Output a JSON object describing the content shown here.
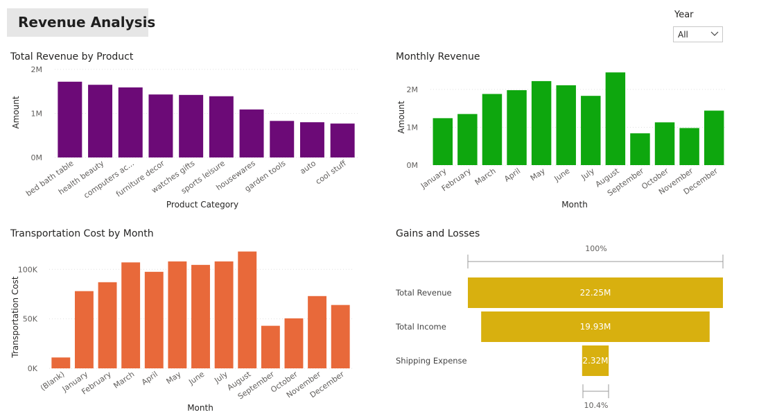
{
  "report": {
    "title": "Revenue Analysis"
  },
  "slicer": {
    "label": "Year",
    "value": "All"
  },
  "chart_data": [
    {
      "type": "bar",
      "id": "total_revenue_by_product",
      "title": "Total Revenue by Product",
      "xlabel": "Product Category",
      "ylabel": "Amount",
      "categories": [
        "bed bath table",
        "health beauty",
        "computers ac...",
        "furniture decor",
        "watches gifts",
        "sports leisure",
        "housewares",
        "garden tools",
        "auto",
        "cool stuff"
      ],
      "values": [
        1720000,
        1650000,
        1590000,
        1430000,
        1420000,
        1390000,
        1090000,
        830000,
        800000,
        770000
      ],
      "ylim": [
        0,
        2000000
      ],
      "yticks": [
        0,
        1000000,
        2000000
      ],
      "ytick_labels": [
        "0M",
        "1M",
        "2M"
      ],
      "color": "#6c0a77"
    },
    {
      "type": "bar",
      "id": "monthly_revenue",
      "title": "Monthly Revenue",
      "xlabel": "Month",
      "ylabel": "Amount",
      "categories": [
        "January",
        "February",
        "March",
        "April",
        "May",
        "June",
        "July",
        "August",
        "September",
        "October",
        "November",
        "December"
      ],
      "values": [
        1240000,
        1350000,
        1880000,
        1980000,
        2220000,
        2110000,
        1830000,
        2450000,
        840000,
        1130000,
        980000,
        1440000
      ],
      "ylim": [
        0,
        2530000
      ],
      "yticks": [
        0,
        1000000,
        2000000
      ],
      "ytick_labels": [
        "0M",
        "1M",
        "2M"
      ],
      "color": "#0ea70e"
    },
    {
      "type": "bar",
      "id": "transportation_cost_by_month",
      "title": "Transportation Cost by Month",
      "xlabel": "Month",
      "ylabel": "Transportation Cost",
      "categories": [
        "(Blank)",
        "January",
        "February",
        "March",
        "April",
        "May",
        "June",
        "July",
        "August",
        "September",
        "October",
        "November",
        "December"
      ],
      "values": [
        11000,
        78000,
        87000,
        107000,
        97500,
        108000,
        104500,
        108000,
        118000,
        43000,
        50500,
        73000,
        64000
      ],
      "ylim": [
        0,
        124000
      ],
      "yticks": [
        0,
        50000,
        100000
      ],
      "ytick_labels": [
        "0K",
        "50K",
        "100K"
      ],
      "color": "#e8693a"
    },
    {
      "type": "funnel",
      "id": "gains_and_losses",
      "title": "Gains and Losses",
      "categories": [
        "Total Revenue",
        "Total Income",
        "Shipping Expense"
      ],
      "values": [
        22.25,
        19.93,
        2.32
      ],
      "value_labels": [
        "22.25M",
        "19.93M",
        "2.32M"
      ],
      "top_percent": "100%",
      "bottom_percent": "10.4%",
      "color": "#d8b00f"
    }
  ]
}
